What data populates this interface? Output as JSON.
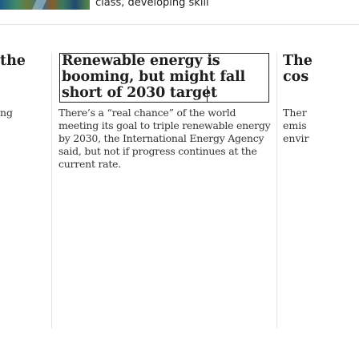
{
  "top_strip": {
    "caption": "class, developing skill"
  },
  "left_column": {
    "headline_fragment": "the",
    "body_fragment": "ng"
  },
  "article": {
    "headline": "Renewable energy is booming, but might fall short of 2030 target",
    "summary": "There’s a “real chance” of the world meeting its goal to triple renewable energy by 2030, the International Energy Agency said, but not if progress continues at the current rate."
  },
  "right_column": {
    "headline_lines": [
      "The",
      "cos"
    ],
    "body_lines": [
      "Ther",
      "emis",
      "envir"
    ]
  }
}
